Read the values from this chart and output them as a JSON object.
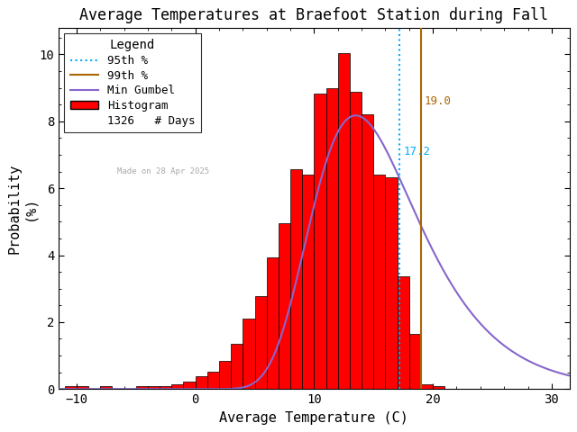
{
  "title": "Average Temperatures at Braefoot Station during Fall",
  "xlabel": "Average Temperature (C)",
  "ylabel": "Probability\n(%)",
  "xlim": [
    -11.5,
    31.5
  ],
  "ylim": [
    0,
    10.8
  ],
  "yticks": [
    0,
    2,
    4,
    6,
    8,
    10
  ],
  "xticks": [
    -10,
    0,
    10,
    20,
    30
  ],
  "bin_left_edges": [
    -11,
    -10,
    -9,
    -8,
    -7,
    -6,
    -5,
    -4,
    -3,
    -2,
    -1,
    0,
    1,
    2,
    3,
    4,
    5,
    6,
    7,
    8,
    9,
    10,
    11,
    12,
    13,
    14,
    15,
    16,
    17,
    18,
    19,
    20,
    21,
    22
  ],
  "bin_heights": [
    0.08,
    0.08,
    0.0,
    0.08,
    0.0,
    0.0,
    0.08,
    0.08,
    0.08,
    0.15,
    0.23,
    0.38,
    0.53,
    0.83,
    1.36,
    2.11,
    2.79,
    3.92,
    4.96,
    6.56,
    6.41,
    8.82,
    8.98,
    10.03,
    8.89,
    8.21,
    6.41,
    6.34,
    3.38,
    1.66,
    0.15,
    0.08,
    0.0,
    0.0
  ],
  "bar_color": "#FF0000",
  "bar_edgecolor": "#000000",
  "percentile_95": 17.2,
  "percentile_99": 19.0,
  "percentile_95_color": "#00AAFF",
  "percentile_99_color": "#AA6600",
  "gumbel_color": "#8866CC",
  "n_days": 1326,
  "made_on": "Made on 28 Apr 2025",
  "legend_title": "Legend",
  "bg_color": "#FFFFFF",
  "title_fontsize": 12,
  "label_fontsize": 11,
  "tick_fontsize": 10,
  "gumbel_mu": 13.5,
  "gumbel_beta": 4.5
}
